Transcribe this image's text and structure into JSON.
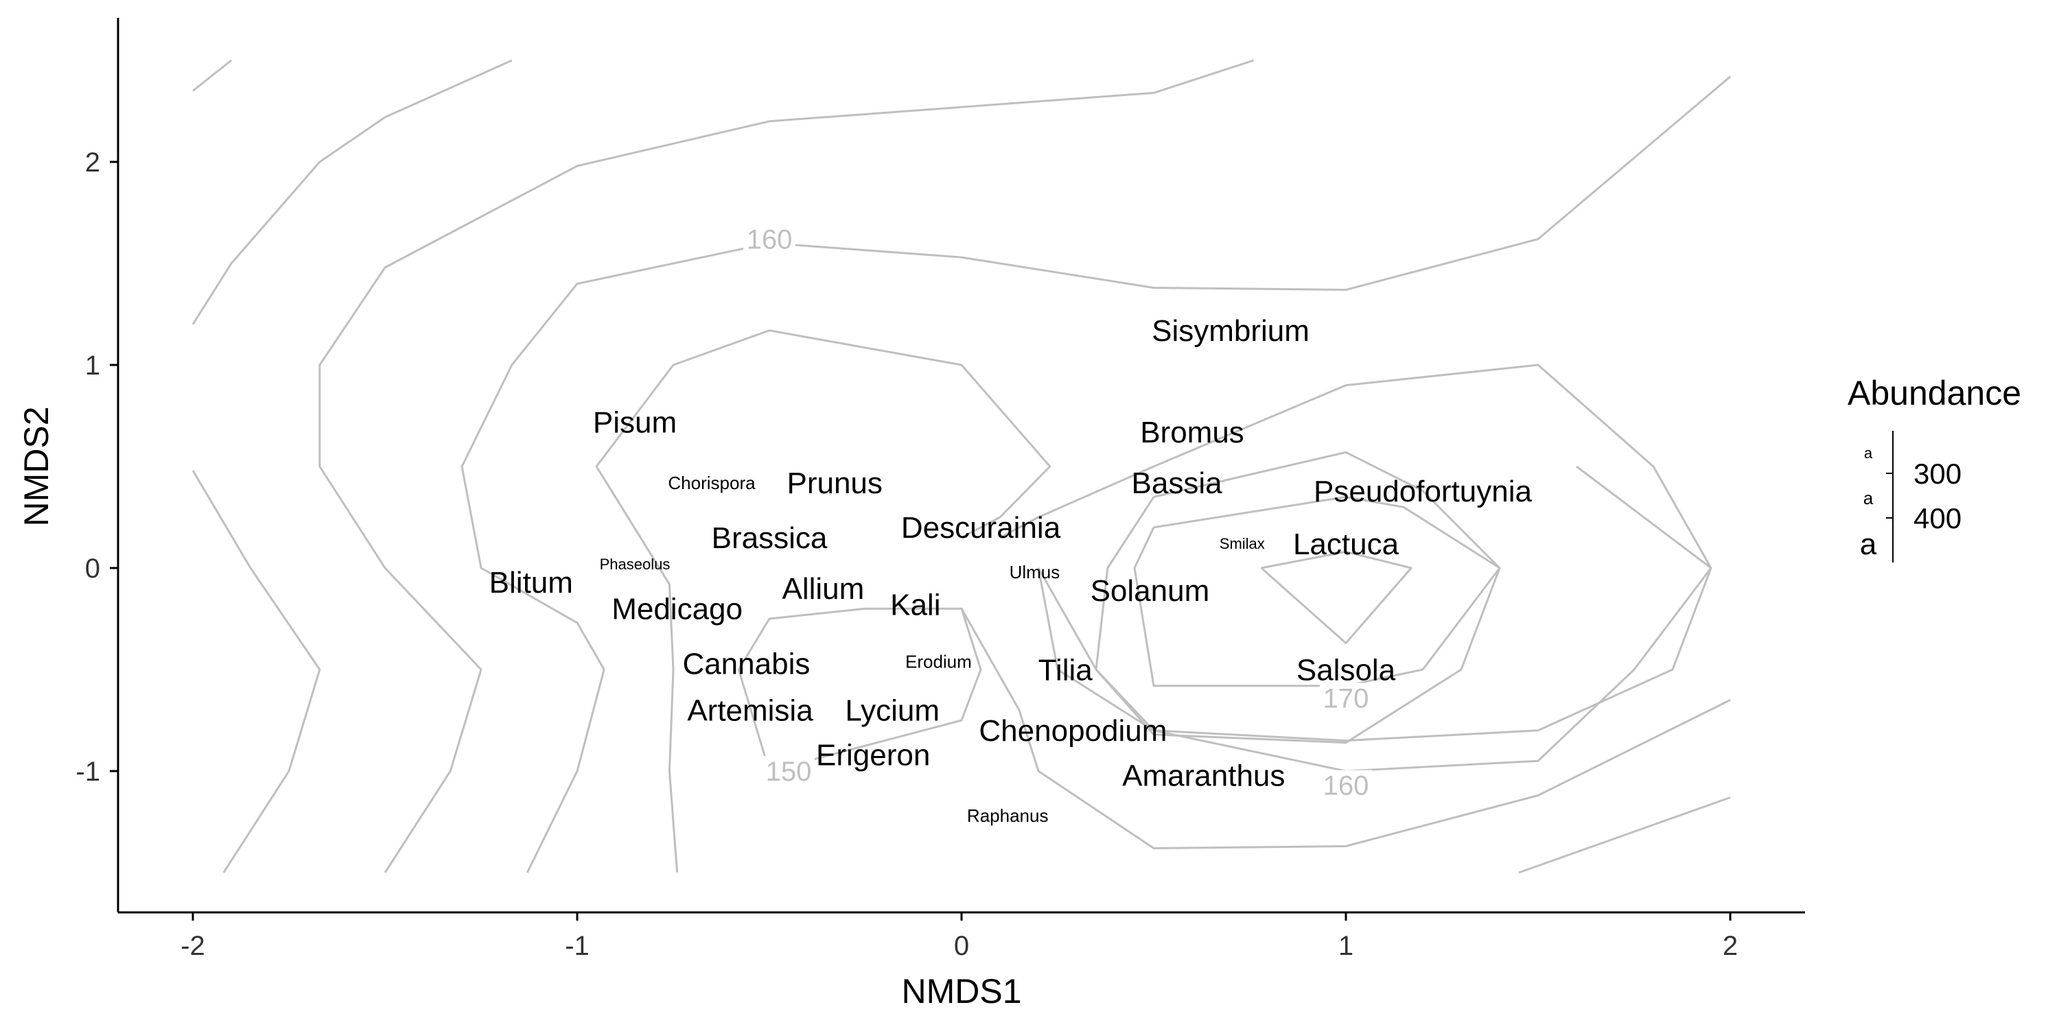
{
  "chart_data": {
    "type": "scatter",
    "xlabel": "NMDS1",
    "ylabel": "NMDS2",
    "xlim": [
      -2.2,
      2.2
    ],
    "ylim": [
      -1.7,
      2.7
    ],
    "xticks": [
      -2,
      -1,
      0,
      1,
      2
    ],
    "yticks": [
      -1,
      0,
      1,
      2
    ],
    "grid": false,
    "legend": {
      "title": "Abundance",
      "position": "right",
      "key_glyph": "a",
      "entries": [
        {
          "label": "300",
          "value": 300
        },
        {
          "label": "400",
          "value": 400
        }
      ]
    },
    "points": [
      {
        "label": "Sisymbrium",
        "x": 0.7,
        "y": 1.17,
        "abundance": 400
      },
      {
        "label": "Pisum",
        "x": -0.85,
        "y": 0.72,
        "abundance": 400
      },
      {
        "label": "Bromus",
        "x": 0.6,
        "y": 0.67,
        "abundance": 400
      },
      {
        "label": "Chorispora",
        "x": -0.65,
        "y": 0.42,
        "abundance": 250
      },
      {
        "label": "Prunus",
        "x": -0.33,
        "y": 0.42,
        "abundance": 400
      },
      {
        "label": "Bassia",
        "x": 0.56,
        "y": 0.42,
        "abundance": 400
      },
      {
        "label": "Pseudofortuynia",
        "x": 1.2,
        "y": 0.38,
        "abundance": 400
      },
      {
        "label": "Descurainia",
        "x": 0.05,
        "y": 0.2,
        "abundance": 400
      },
      {
        "label": "Brassica",
        "x": -0.5,
        "y": 0.15,
        "abundance": 400
      },
      {
        "label": "Smilax",
        "x": 0.73,
        "y": 0.12,
        "abundance": 220
      },
      {
        "label": "Lactuca",
        "x": 1.0,
        "y": 0.12,
        "abundance": 400
      },
      {
        "label": "Phaseolus",
        "x": -0.85,
        "y": 0.02,
        "abundance": 220
      },
      {
        "label": "Ulmus",
        "x": 0.19,
        "y": -0.02,
        "abundance": 250
      },
      {
        "label": "Blitum",
        "x": -1.12,
        "y": -0.07,
        "abundance": 400
      },
      {
        "label": "Allium",
        "x": -0.36,
        "y": -0.1,
        "abundance": 400
      },
      {
        "label": "Solanum",
        "x": 0.49,
        "y": -0.11,
        "abundance": 400
      },
      {
        "label": "Kali",
        "x": -0.12,
        "y": -0.18,
        "abundance": 400
      },
      {
        "label": "Medicago",
        "x": -0.74,
        "y": -0.2,
        "abundance": 400
      },
      {
        "label": "Cannabis",
        "x": -0.56,
        "y": -0.47,
        "abundance": 400
      },
      {
        "label": "Erodium",
        "x": -0.06,
        "y": -0.46,
        "abundance": 250
      },
      {
        "label": "Tilia",
        "x": 0.27,
        "y": -0.5,
        "abundance": 400
      },
      {
        "label": "Salsola",
        "x": 1.0,
        "y": -0.5,
        "abundance": 400
      },
      {
        "label": "Artemisia",
        "x": -0.55,
        "y": -0.7,
        "abundance": 400
      },
      {
        "label": "Lycium",
        "x": -0.18,
        "y": -0.7,
        "abundance": 400
      },
      {
        "label": "Chenopodium",
        "x": 0.29,
        "y": -0.8,
        "abundance": 400
      },
      {
        "label": "Erigeron",
        "x": -0.23,
        "y": -0.92,
        "abundance": 400
      },
      {
        "label": "Amaranthus",
        "x": 0.63,
        "y": -1.02,
        "abundance": 400
      },
      {
        "label": "Raphanus",
        "x": 0.12,
        "y": -1.22,
        "abundance": 250
      }
    ],
    "contours": [
      {
        "points": [
          [
            -2,
            2.35
          ],
          [
            -1.9,
            2.5
          ]
        ]
      },
      {
        "points": [
          [
            -2,
            1.2
          ],
          [
            -1.9,
            1.5
          ],
          [
            -1.67,
            2.0
          ],
          [
            -1.5,
            2.22
          ],
          [
            -1.17,
            2.5
          ]
        ]
      },
      {
        "points": [
          [
            -2,
            0.48
          ],
          [
            -1.85,
            0
          ],
          [
            -1.67,
            -0.5
          ],
          [
            -1.75,
            -1.0
          ],
          [
            -1.92,
            -1.5
          ]
        ]
      },
      {
        "points": [
          [
            -1.5,
            -1.5
          ],
          [
            -1.33,
            -1.0
          ],
          [
            -1.25,
            -0.5
          ],
          [
            -1.5,
            0
          ],
          [
            -1.67,
            0.5
          ],
          [
            -1.67,
            1.0
          ],
          [
            -1.5,
            1.48
          ],
          [
            -1.0,
            1.98
          ],
          [
            -0.5,
            2.2
          ],
          [
            0.5,
            2.34
          ],
          [
            0.76,
            2.5
          ]
        ]
      },
      {
        "points": [
          [
            -1.13,
            -1.5
          ],
          [
            -1.0,
            -1.0
          ],
          [
            -0.93,
            -0.5
          ],
          [
            -1.0,
            -0.27
          ],
          [
            -1.25,
            0.0
          ],
          [
            -1.3,
            0.5
          ],
          [
            -1.17,
            1.0
          ],
          [
            -1.0,
            1.4
          ],
          [
            -0.75,
            1.5
          ],
          [
            -0.5,
            1.6
          ],
          [
            0,
            1.53
          ],
          [
            0.5,
            1.38
          ],
          [
            1.0,
            1.37
          ],
          [
            1.5,
            1.62
          ],
          [
            2.0,
            2.42
          ]
        ]
      },
      {
        "points": [
          [
            -0.74,
            -1.5
          ],
          [
            -0.76,
            -1.0
          ],
          [
            -0.75,
            -0.5
          ],
          [
            -0.76,
            -0.08
          ],
          [
            -0.95,
            0.5
          ],
          [
            -0.75,
            1.0
          ],
          [
            -0.5,
            1.17
          ],
          [
            0,
            1.0
          ],
          [
            0.23,
            0.5
          ],
          [
            0.1,
            0.25
          ],
          [
            0.0,
            0.15
          ]
        ]
      },
      {
        "points": [
          [
            -0.5,
            -1.0
          ],
          [
            -0.58,
            -0.5
          ],
          [
            -0.5,
            -0.25
          ],
          [
            -0.25,
            -0.2
          ],
          [
            0,
            -0.2
          ],
          [
            0.05,
            -0.5
          ],
          [
            0,
            -0.75
          ],
          [
            -0.5,
            -1.0
          ]
        ]
      },
      {
        "points": [
          [
            0.2,
            0
          ],
          [
            0.25,
            -0.5
          ],
          [
            0.5,
            -0.8
          ],
          [
            1.0,
            -0.85
          ],
          [
            1.5,
            -0.8
          ],
          [
            1.85,
            -0.5
          ],
          [
            1.95,
            0.0
          ],
          [
            1.8,
            0.5
          ],
          [
            1.5,
            1.0
          ],
          [
            1.0,
            0.9
          ],
          [
            0.5,
            0.5
          ],
          [
            0.2,
            0.25
          ],
          [
            0.1,
            0.15
          ]
        ]
      },
      {
        "points": [
          [
            0.5,
            0.35
          ],
          [
            0.38,
            0
          ],
          [
            0.35,
            -0.5
          ],
          [
            0.5,
            -0.82
          ],
          [
            1.0,
            -0.86
          ],
          [
            1.3,
            -0.5
          ],
          [
            1.4,
            0.0
          ],
          [
            1.2,
            0.38
          ],
          [
            1.0,
            0.57
          ],
          [
            0.5,
            0.35
          ]
        ]
      },
      {
        "points": [
          [
            0.5,
            0.2
          ],
          [
            0.45,
            0
          ],
          [
            0.5,
            -0.58
          ],
          [
            1.0,
            -0.58
          ],
          [
            1.2,
            -0.5
          ],
          [
            1.4,
            0.0
          ],
          [
            1.15,
            0.3
          ],
          [
            1.0,
            0.35
          ],
          [
            0.5,
            0.2
          ]
        ]
      },
      {
        "points": [
          [
            0.78,
            0
          ],
          [
            1.0,
            0.08
          ],
          [
            1.17,
            0
          ],
          [
            1.0,
            -0.37
          ],
          [
            0.78,
            0
          ]
        ]
      },
      {
        "points": [
          [
            0.2,
            0
          ],
          [
            0.35,
            -0.5
          ],
          [
            0.5,
            -0.8
          ],
          [
            1.0,
            -1.0
          ],
          [
            1.5,
            -0.95
          ],
          [
            1.75,
            -0.5
          ],
          [
            1.95,
            0.0
          ],
          [
            1.6,
            0.5
          ]
        ]
      },
      {
        "points": [
          [
            0.0,
            -0.2
          ],
          [
            0.15,
            -0.7
          ],
          [
            0.2,
            -1.0
          ],
          [
            0.5,
            -1.38
          ],
          [
            1.0,
            -1.37
          ],
          [
            1.5,
            -1.12
          ],
          [
            2.0,
            -0.65
          ]
        ]
      },
      {
        "points": [
          [
            1.45,
            -1.5
          ],
          [
            2.0,
            -1.13
          ]
        ]
      }
    ],
    "contour_labels": [
      {
        "text": "160",
        "x": -0.5,
        "y": 1.6
      },
      {
        "text": "150",
        "x": -0.45,
        "y": -1.02
      },
      {
        "text": "170",
        "x": 1.0,
        "y": -0.66
      },
      {
        "text": "160",
        "x": 1.0,
        "y": -1.09
      }
    ]
  }
}
